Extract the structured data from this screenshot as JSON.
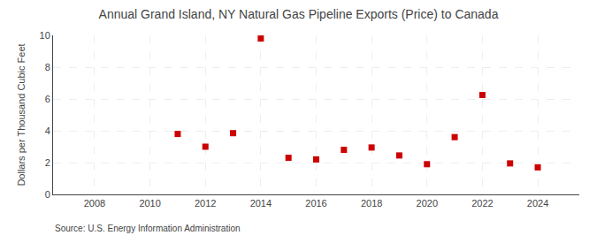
{
  "chart_data": {
    "type": "scatter",
    "title": "Annual Grand Island, NY Natural Gas Pipeline Exports (Price) to Canada",
    "ylabel": "Dollars per Thousand Cubic Feet",
    "source": "Source: U.S. Energy Information Administration",
    "x": [
      2011,
      2012,
      2013,
      2014,
      2015,
      2016,
      2017,
      2018,
      2019,
      2020,
      2021,
      2022,
      2023,
      2024
    ],
    "values": [
      3.8,
      3.0,
      3.85,
      9.8,
      2.3,
      2.2,
      2.8,
      2.95,
      2.45,
      1.9,
      3.6,
      6.25,
      1.95,
      1.7
    ],
    "color": "#cc0000",
    "marker": "square",
    "xlim": [
      2006.5,
      2025.5
    ],
    "ylim": [
      0,
      10
    ],
    "xticks": [
      2008,
      2010,
      2012,
      2014,
      2016,
      2018,
      2020,
      2022,
      2024
    ],
    "yticks": [
      0,
      2,
      4,
      6,
      8,
      10
    ],
    "grid": true
  }
}
